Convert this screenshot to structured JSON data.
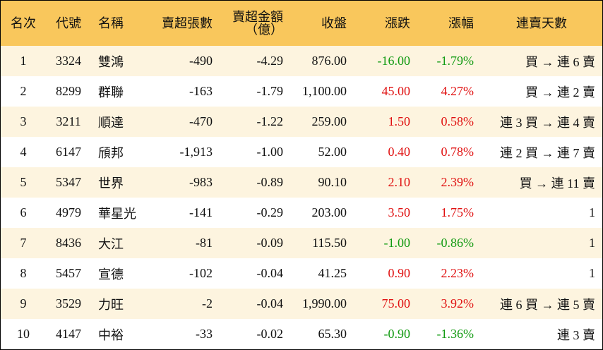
{
  "table": {
    "header": [
      "名次",
      "代號",
      "名稱",
      "賣超張數",
      "賣超金額\n（億）",
      "收盤",
      "漲跌",
      "漲幅",
      "連賣天數"
    ],
    "rows": [
      [
        "1",
        "3324",
        "雙鴻",
        "-490",
        "-4.29",
        "876.00",
        "-16.00",
        "-1.79%",
        "買 → 連 6 賣"
      ],
      [
        "2",
        "8299",
        "群聯",
        "-163",
        "-1.79",
        "1,100.00",
        "45.00",
        "4.27%",
        "買 → 連 2 賣"
      ],
      [
        "3",
        "3211",
        "順達",
        "-470",
        "-1.22",
        "259.00",
        "1.50",
        "0.58%",
        "連 3 買 → 連 4 賣"
      ],
      [
        "4",
        "6147",
        "頎邦",
        "-1,913",
        "-1.00",
        "52.00",
        "0.40",
        "0.78%",
        "連 2 買 → 連 7 賣"
      ],
      [
        "5",
        "5347",
        "世界",
        "-983",
        "-0.89",
        "90.10",
        "2.10",
        "2.39%",
        "買 → 連 11 賣"
      ],
      [
        "6",
        "4979",
        "華星光",
        "-141",
        "-0.29",
        "203.00",
        "3.50",
        "1.75%",
        "1"
      ],
      [
        "7",
        "8436",
        "大江",
        "-81",
        "-0.09",
        "115.50",
        "-1.00",
        "-0.86%",
        "1"
      ],
      [
        "8",
        "5457",
        "宣德",
        "-102",
        "-0.04",
        "41.25",
        "0.90",
        "2.23%",
        "1"
      ],
      [
        "9",
        "3529",
        "力旺",
        "-2",
        "-0.04",
        "1,990.00",
        "75.00",
        "3.92%",
        "連 6 買 → 連 5 賣"
      ],
      [
        "10",
        "4147",
        "中裕",
        "-33",
        "-0.02",
        "65.30",
        "-0.90",
        "-1.36%",
        "連 3 賣"
      ]
    ]
  }
}
